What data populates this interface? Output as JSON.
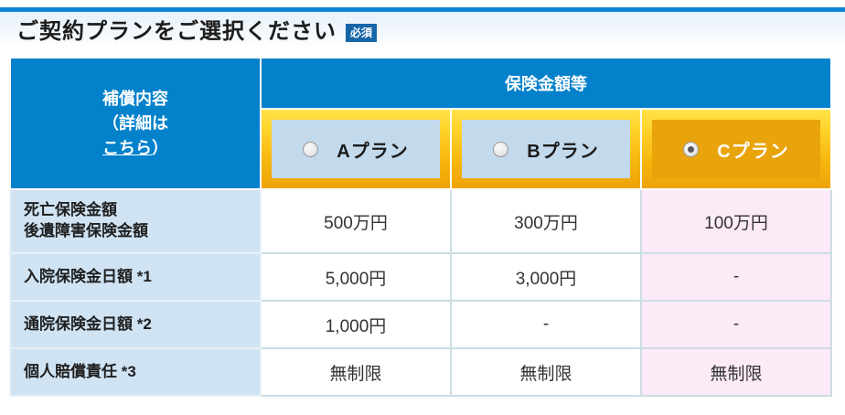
{
  "page": {
    "title": "ご契約プランをご選択ください",
    "required_badge": "必須"
  },
  "table": {
    "corner": {
      "line1": "補償内容",
      "line2": "（詳細は",
      "link": "こちら",
      "close": "）"
    },
    "amount_header": "保険金額等",
    "plans": [
      {
        "id": "a",
        "label": "Aプラン",
        "selected": false
      },
      {
        "id": "b",
        "label": "Bプラン",
        "selected": false
      },
      {
        "id": "c",
        "label": "Cプラン",
        "selected": true
      }
    ],
    "rows": [
      {
        "label": [
          "死亡保険金額",
          "後遺障害保険金額"
        ],
        "values": [
          "500万円",
          "300万円",
          "100万円"
        ]
      },
      {
        "label": [
          "入院保険金日額 *1"
        ],
        "values": [
          "5,000円",
          "3,000円",
          "-"
        ]
      },
      {
        "label": [
          "通院保険金日額 *2"
        ],
        "values": [
          "1,000円",
          "-",
          "-"
        ]
      },
      {
        "label": [
          "個人賠償責任 *3"
        ],
        "values": [
          "無制限",
          "無制限",
          "無制限"
        ]
      }
    ]
  },
  "colors": {
    "brand_blue": "#0381cb",
    "title_rule_blue": "#0e84d6",
    "badge_blue": "#1565a8",
    "plan_gold_top": "#ffe24a",
    "plan_gold_bottom": "#eea308",
    "plan_button_blue": "#c3d9ec",
    "plan_button_selected_orange": "#e9a30b",
    "row_label_blue": "#cfe3f3",
    "selected_column_pink": "#fceaf7"
  }
}
